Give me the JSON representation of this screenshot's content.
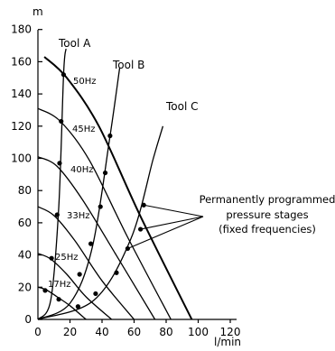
{
  "chart_data": {
    "type": "line",
    "ylabel": "m",
    "xlabel": "l/min",
    "xlim": [
      0,
      120
    ],
    "ylim": [
      0,
      180
    ],
    "xticks": [
      "0",
      "20",
      "40",
      "60",
      "80",
      "100",
      "120"
    ],
    "yticks": [
      "0",
      "20",
      "40",
      "60",
      "80",
      "100",
      "120",
      "140",
      "160",
      "180"
    ],
    "grid": false,
    "frequency_curves": [
      {
        "name": "17Hz",
        "points": [
          [
            0,
            20
          ],
          [
            5,
            18.5
          ],
          [
            12,
            14
          ],
          [
            20,
            8.5
          ],
          [
            30,
            0
          ]
        ]
      },
      {
        "name": "25Hz",
        "points": [
          [
            0,
            41
          ],
          [
            8,
            37.5
          ],
          [
            18,
            28
          ],
          [
            30,
            14
          ],
          [
            46,
            0
          ]
        ]
      },
      {
        "name": "33Hz",
        "points": [
          [
            0,
            70
          ],
          [
            10,
            64.5
          ],
          [
            23,
            49
          ],
          [
            40,
            24
          ],
          [
            60,
            0
          ]
        ]
      },
      {
        "name": "40Hz",
        "points": [
          [
            0,
            101
          ],
          [
            12,
            95
          ],
          [
            28,
            74
          ],
          [
            50,
            38
          ],
          [
            73,
            0
          ]
        ]
      },
      {
        "name": "45Hz",
        "points": [
          [
            0,
            131
          ],
          [
            14,
            123
          ],
          [
            32,
            99
          ],
          [
            56,
            51
          ],
          [
            83,
            0
          ]
        ]
      },
      {
        "name": "50Hz",
        "points": [
          [
            4,
            163
          ],
          [
            18,
            150
          ],
          [
            38,
            120
          ],
          [
            64,
            64
          ],
          [
            96,
            0
          ]
        ]
      }
    ],
    "tool_curves": [
      {
        "name": "Tool A",
        "points": [
          [
            0,
            0
          ],
          [
            8,
            12
          ],
          [
            13,
            70
          ],
          [
            16,
            152
          ],
          [
            17.5,
            168
          ]
        ]
      },
      {
        "name": "Tool B",
        "points": [
          [
            0,
            0
          ],
          [
            20,
            10
          ],
          [
            34,
            45
          ],
          [
            45,
            114
          ],
          [
            51,
            156
          ]
        ]
      },
      {
        "name": "Tool C",
        "points": [
          [
            0,
            0
          ],
          [
            35,
            12
          ],
          [
            58,
            50
          ],
          [
            72,
            100
          ],
          [
            78,
            120
          ]
        ]
      }
    ],
    "operating_points": [
      [
        4.5,
        18
      ],
      [
        13,
        12.5
      ],
      [
        25,
        8
      ],
      [
        8.5,
        38
      ],
      [
        26,
        28
      ],
      [
        36,
        16
      ],
      [
        12,
        65
      ],
      [
        33,
        47
      ],
      [
        49,
        29
      ],
      [
        13.5,
        97
      ],
      [
        39,
        70
      ],
      [
        56,
        44
      ],
      [
        14.5,
        123
      ],
      [
        42,
        91
      ],
      [
        64,
        56
      ],
      [
        16,
        152
      ],
      [
        45,
        114
      ],
      [
        66,
        71
      ]
    ],
    "annotation": {
      "lines": [
        "Permanently programmed",
        "pressure stages",
        "(fixed frequencies)"
      ],
      "targets": [
        [
          66,
          71
        ],
        [
          64,
          56
        ],
        [
          56,
          44
        ]
      ]
    }
  }
}
